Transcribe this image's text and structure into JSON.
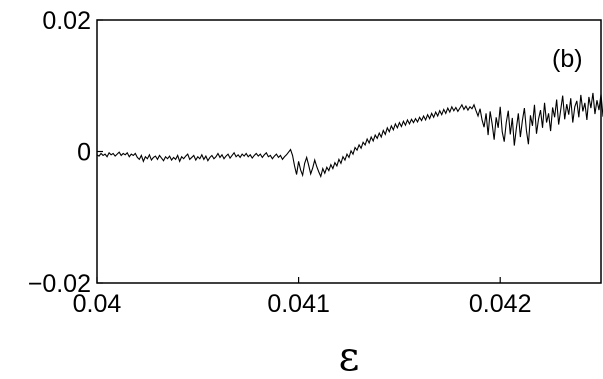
{
  "chart_data": {
    "type": "line",
    "panel_label": "(b)",
    "title": "",
    "xlabel": "ε",
    "ylabel": "",
    "xlim": [
      0.04,
      0.0425
    ],
    "ylim": [
      -0.02,
      0.02
    ],
    "grid": false,
    "x_ticks": [
      {
        "value": 0.04,
        "label": "0.04"
      },
      {
        "value": 0.041,
        "label": "0.041"
      },
      {
        "value": 0.042,
        "label": "0.042"
      }
    ],
    "y_ticks": [
      {
        "value": 0.02,
        "label": "0.02"
      },
      {
        "value": 0,
        "label": "0"
      },
      {
        "value": -0.02,
        "label": "−0.02"
      }
    ],
    "series": [
      {
        "x_start": 0.04,
        "x_step": 1e-05,
        "y": [
          -0.0005,
          -0.0007,
          -0.0003,
          -0.0006,
          -0.0004,
          -0.0008,
          -0.0002,
          -0.0005,
          -0.0003,
          -0.0007,
          -0.0004,
          -0.0001,
          -0.0006,
          -0.0003,
          -0.0005,
          -0.0002,
          -0.0008,
          -0.0004,
          -0.0006,
          -0.0003,
          -0.0009,
          -0.0012,
          -0.0006,
          -0.0015,
          -0.0008,
          -0.0011,
          -0.0005,
          -0.0013,
          -0.0009,
          -0.0007,
          -0.0012,
          -0.0006,
          -0.001,
          -0.0014,
          -0.0008,
          -0.0011,
          -0.0007,
          -0.0013,
          -0.0009,
          -0.0012,
          -0.0006,
          -0.0015,
          -0.0008,
          -0.0011,
          -0.0007,
          -0.0004,
          -0.0012,
          -0.0009,
          -0.0006,
          -0.0013,
          -0.0008,
          -0.0011,
          -0.0005,
          -0.0012,
          -0.0007,
          -0.0014,
          -0.0009,
          -0.0006,
          -0.0011,
          -0.0008,
          -0.0003,
          -0.0009,
          -0.0005,
          -0.0011,
          -0.0007,
          -0.0004,
          -0.001,
          -0.0006,
          -0.0002,
          -0.0008,
          -0.0005,
          -0.0009,
          -0.0004,
          -0.0007,
          -0.0003,
          -0.0008,
          -0.0005,
          -0.001,
          -0.0006,
          -0.0003,
          -0.0007,
          -0.0004,
          -0.0009,
          -0.0005,
          -0.0002,
          -0.0008,
          -0.0006,
          -0.0011,
          -0.0007,
          -0.0004,
          -0.0009,
          -0.0006,
          -0.0012,
          -0.0008,
          -0.0005,
          -0.0001,
          0.0003,
          -0.0006,
          -0.0022,
          -0.0035,
          -0.0015,
          -0.0028,
          -0.0036,
          -0.0018,
          -0.0009,
          -0.0021,
          -0.0034,
          -0.0025,
          -0.0013,
          -0.0023,
          -0.0031,
          -0.0038,
          -0.0026,
          -0.0033,
          -0.0024,
          -0.0029,
          -0.002,
          -0.0026,
          -0.0017,
          -0.0022,
          -0.0012,
          -0.0018,
          -0.0008,
          -0.0013,
          -0.0004,
          -0.0009,
          0.0001,
          -0.0004,
          0.0006,
          0.0002,
          0.001,
          0.0005,
          0.0014,
          0.001,
          0.0019,
          0.0013,
          0.0022,
          0.0016,
          0.0025,
          0.002,
          0.0028,
          0.0022,
          0.0032,
          0.0026,
          0.0036,
          0.003,
          0.0039,
          0.0033,
          0.0042,
          0.0036,
          0.0044,
          0.0038,
          0.0046,
          0.004,
          0.0048,
          0.0042,
          0.0049,
          0.0044,
          0.005,
          0.0045,
          0.0052,
          0.0047,
          0.0054,
          0.0048,
          0.0056,
          0.005,
          0.0058,
          0.0052,
          0.006,
          0.0054,
          0.0062,
          0.0056,
          0.0064,
          0.0058,
          0.0066,
          0.006,
          0.0068,
          0.0062,
          0.0067,
          0.0061,
          0.0066,
          0.0071,
          0.0064,
          0.0069,
          0.0063,
          0.0068,
          0.0065,
          0.0071,
          0.0062,
          0.0054,
          0.0065,
          0.0048,
          0.0037,
          0.0058,
          0.0025,
          0.0061,
          0.0042,
          0.0018,
          0.0052,
          0.0036,
          0.0068,
          0.003,
          0.0015,
          0.0044,
          0.0062,
          0.0026,
          0.0051,
          0.0009,
          0.0035,
          0.0058,
          0.0022,
          0.0047,
          0.0066,
          0.0032,
          0.0011,
          0.0055,
          0.0039,
          0.0071,
          0.0027,
          0.0049,
          0.0063,
          0.0036,
          0.0074,
          0.0044,
          0.0058,
          0.0031,
          0.0067,
          0.0052,
          0.0079,
          0.0041,
          0.0063,
          0.0085,
          0.0049,
          0.0072,
          0.0056,
          0.0081,
          0.0044,
          0.0068,
          0.0077,
          0.0052,
          0.0086,
          0.0061,
          0.0074,
          0.0048,
          0.0083,
          0.0066,
          0.0089,
          0.0057,
          0.0078,
          0.0063,
          0.0087,
          0.0053,
          0.0071,
          0.0092,
          0.0059,
          0.0081,
          0.0067,
          0.0054
        ]
      }
    ]
  }
}
